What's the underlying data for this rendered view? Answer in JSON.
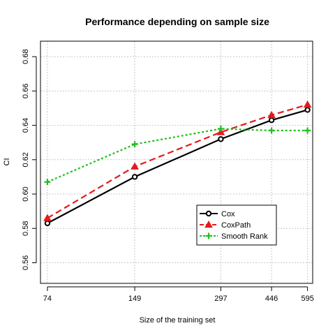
{
  "chart_data": {
    "type": "line",
    "title": "Performance depending on sample size",
    "xlabel": "Size of the training set",
    "ylabel": "CI",
    "x": [
      74,
      149,
      297,
      446,
      595
    ],
    "x_tick_labels": [
      "74",
      "149",
      "297",
      "446",
      "595"
    ],
    "x_scale": "log",
    "xlim": [
      70,
      620
    ],
    "ylim": [
      0.548,
      0.689
    ],
    "y_ticks": [
      0.56,
      0.58,
      0.6,
      0.62,
      0.64,
      0.66,
      0.68
    ],
    "y_tick_labels": [
      "0.56",
      "0.58",
      "0.60",
      "0.62",
      "0.64",
      "0.66",
      "0.68"
    ],
    "grid": true,
    "legend_position": "bottom-right",
    "series": [
      {
        "name": "Cox",
        "values": [
          0.583,
          0.61,
          0.632,
          0.643,
          0.649
        ],
        "color": "#000000",
        "marker": "circle",
        "line": "solid"
      },
      {
        "name": "CoxPath",
        "values": [
          0.586,
          0.616,
          0.636,
          0.646,
          0.652
        ],
        "color": "#e41a1c",
        "marker": "triangle",
        "line": "dashed"
      },
      {
        "name": "Smooth Rank",
        "values": [
          0.607,
          0.629,
          0.638,
          0.637,
          0.637
        ],
        "color": "#1fbf1f",
        "marker": "plus",
        "line": "dotted"
      }
    ]
  }
}
